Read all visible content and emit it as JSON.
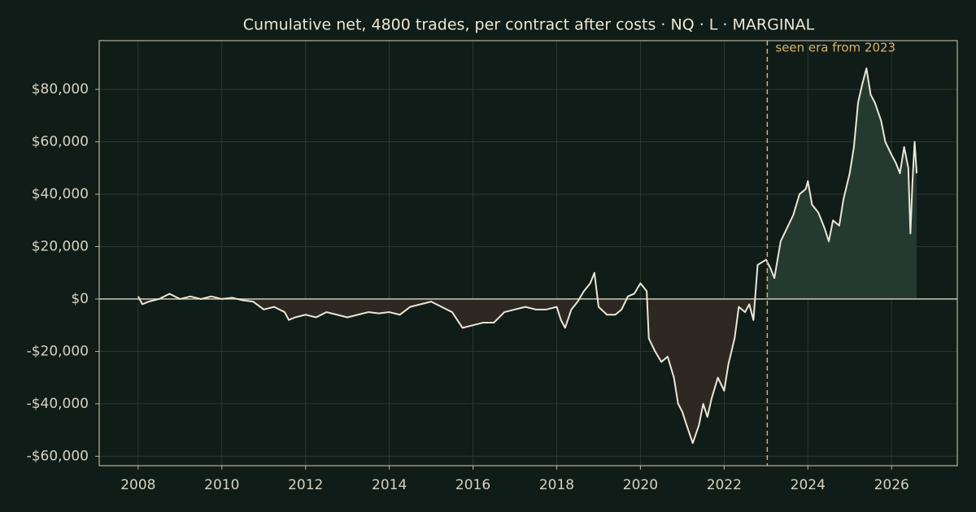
{
  "chart_data": {
    "type": "line",
    "title": "Cumulative net, 4800 trades, per contract after costs  ·  NQ · L · MARGINAL",
    "annotation": "seen era from 2023",
    "split": 2023.03,
    "color": "#ece6d6",
    "pos_fill": "#243a31",
    "neg_fill": "#2e2822",
    "split_color": "#d9b06a",
    "grid": true,
    "xlim": [
      2007.07,
      2027.57
    ],
    "xticks": [
      2008,
      2010,
      2012,
      2014,
      2016,
      2018,
      2020,
      2022,
      2024,
      2026
    ],
    "ylim": [
      -63600,
      98600
    ],
    "yticks": [
      {
        "value": -60000,
        "label": "-$60,000"
      },
      {
        "value": -40000,
        "label": "-$40,000"
      },
      {
        "value": -20000,
        "label": "-$20,000"
      },
      {
        "value": 0,
        "label": "$0"
      },
      {
        "value": 20000,
        "label": "$20,000"
      },
      {
        "value": 40000,
        "label": "$40,000"
      },
      {
        "value": 60000,
        "label": "$60,000"
      },
      {
        "value": 80000,
        "label": "$80,000"
      }
    ],
    "x": [
      2008.0,
      2008.1,
      2008.25,
      2008.5,
      2008.75,
      2009.0,
      2009.25,
      2009.5,
      2009.75,
      2010.0,
      2010.25,
      2010.5,
      2010.75,
      2011.0,
      2011.25,
      2011.5,
      2011.6,
      2011.75,
      2012.0,
      2012.25,
      2012.5,
      2012.75,
      2013.0,
      2013.25,
      2013.5,
      2013.75,
      2014.0,
      2014.25,
      2014.5,
      2014.75,
      2015.0,
      2015.25,
      2015.5,
      2015.75,
      2016.0,
      2016.25,
      2016.5,
      2016.75,
      2017.0,
      2017.25,
      2017.5,
      2017.75,
      2018.0,
      2018.1,
      2018.2,
      2018.35,
      2018.5,
      2018.65,
      2018.8,
      2018.9,
      2019.0,
      2019.2,
      2019.4,
      2019.55,
      2019.7,
      2019.85,
      2020.0,
      2020.15,
      2020.2,
      2020.35,
      2020.5,
      2020.65,
      2020.8,
      2020.9,
      2021.0,
      2021.1,
      2021.25,
      2021.4,
      2021.5,
      2021.6,
      2021.7,
      2021.85,
      2022.0,
      2022.1,
      2022.25,
      2022.35,
      2022.5,
      2022.6,
      2022.7,
      2022.8,
      2022.9,
      2023.0,
      2023.1,
      2023.2,
      2023.35,
      2023.5,
      2023.65,
      2023.8,
      2023.95,
      2024.0,
      2024.1,
      2024.25,
      2024.4,
      2024.5,
      2024.6,
      2024.75,
      2024.85,
      2025.0,
      2025.1,
      2025.2,
      2025.3,
      2025.4,
      2025.5,
      2025.6,
      2025.75,
      2025.85,
      2026.0,
      2026.1,
      2026.2,
      2026.3,
      2026.4,
      2026.45,
      2026.5,
      2026.55,
      2026.6
    ],
    "values": [
      1000,
      -2000,
      -1000,
      0,
      2000,
      0,
      1000,
      0,
      1000,
      0,
      500,
      -500,
      -1000,
      -4000,
      -3000,
      -5000,
      -8000,
      -7000,
      -6000,
      -7000,
      -5000,
      -6000,
      -7000,
      -6000,
      -5000,
      -5500,
      -5000,
      -6000,
      -3000,
      -2000,
      -1000,
      -3000,
      -5000,
      -11000,
      -10000,
      -9000,
      -9000,
      -5000,
      -4000,
      -3000,
      -4000,
      -4000,
      -3000,
      -8000,
      -11000,
      -4000,
      -1000,
      3000,
      6000,
      10000,
      -3000,
      -6000,
      -6000,
      -4000,
      1000,
      2000,
      6000,
      3000,
      -15000,
      -20000,
      -24000,
      -22000,
      -30000,
      -40000,
      -43000,
      -48000,
      -55000,
      -48000,
      -40000,
      -45000,
      -38000,
      -30000,
      -35000,
      -25000,
      -15000,
      -3000,
      -5000,
      -2000,
      -8000,
      13000,
      14000,
      15000,
      12000,
      8000,
      22000,
      27000,
      32000,
      40000,
      42000,
      45000,
      36000,
      33000,
      27000,
      22000,
      30000,
      28000,
      38000,
      48000,
      58000,
      75000,
      82000,
      88000,
      78000,
      75000,
      68000,
      60000,
      55000,
      52000,
      48000,
      58000,
      50000,
      25000,
      45000,
      60000,
      48000
    ]
  }
}
